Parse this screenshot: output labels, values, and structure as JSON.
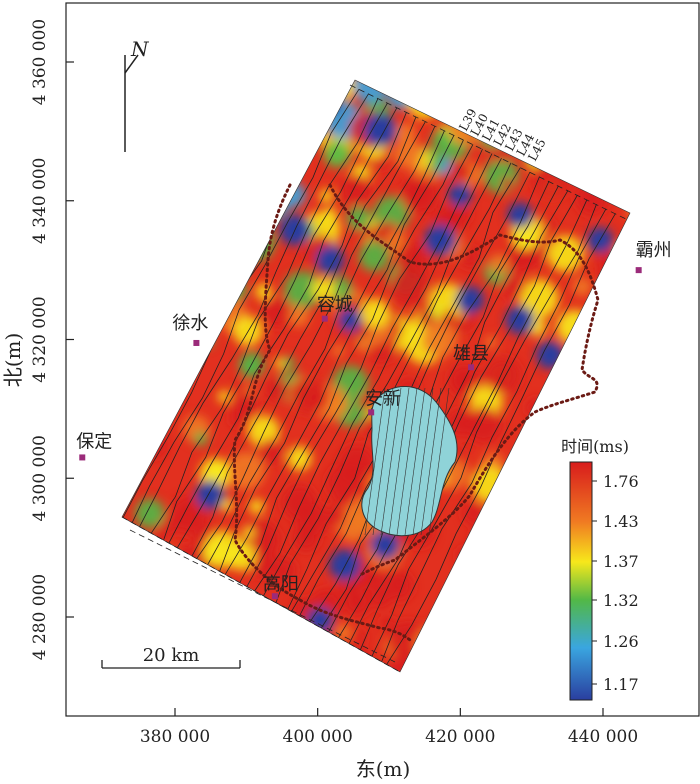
{
  "map": {
    "y_axis_label": "北(m)",
    "x_axis_label": "东(m)",
    "y_ticks": [
      "4 360 000",
      "4 340 000",
      "4 320 000",
      "4 300 000",
      "4 280 000"
    ],
    "x_ticks": [
      "380 000",
      "400 000",
      "420 000",
      "440 000"
    ],
    "north_label": "N",
    "scale_bar_label": "20 km",
    "lines_top": [
      "L39",
      "L40",
      "L41",
      "L42",
      "L43",
      "L44",
      "L45"
    ],
    "places": [
      {
        "name": "霸州",
        "x": 445000,
        "y": 4330000,
        "boxed": true
      },
      {
        "name": "徐水",
        "x": 383000,
        "y": 4319500,
        "boxed": true
      },
      {
        "name": "保定",
        "x": 367000,
        "y": 4303000,
        "boxed": true
      },
      {
        "name": "容城",
        "x": 401000,
        "y": 4323000,
        "boxed": false
      },
      {
        "name": "雄县",
        "x": 421500,
        "y": 4316000,
        "boxed": false
      },
      {
        "name": "安新",
        "x": 407500,
        "y": 4309500,
        "boxed": false
      },
      {
        "name": "高阳",
        "x": 394000,
        "y": 4283000,
        "boxed": false
      }
    ],
    "colors": {
      "background": "#ffffff",
      "frame": "#222222",
      "lake": "#8fd3d8",
      "boundary": "#6b1a14",
      "place_marker": "#9b2b7a"
    }
  },
  "legend": {
    "title": "时间(ms)",
    "labels": [
      "1.76",
      "1.43",
      "1.37",
      "1.32",
      "1.26",
      "1.17"
    ],
    "colors": [
      "#d81c1c",
      "#f07a22",
      "#f7e81b",
      "#52b847",
      "#3aa6e0",
      "#2a3e9f"
    ]
  }
}
